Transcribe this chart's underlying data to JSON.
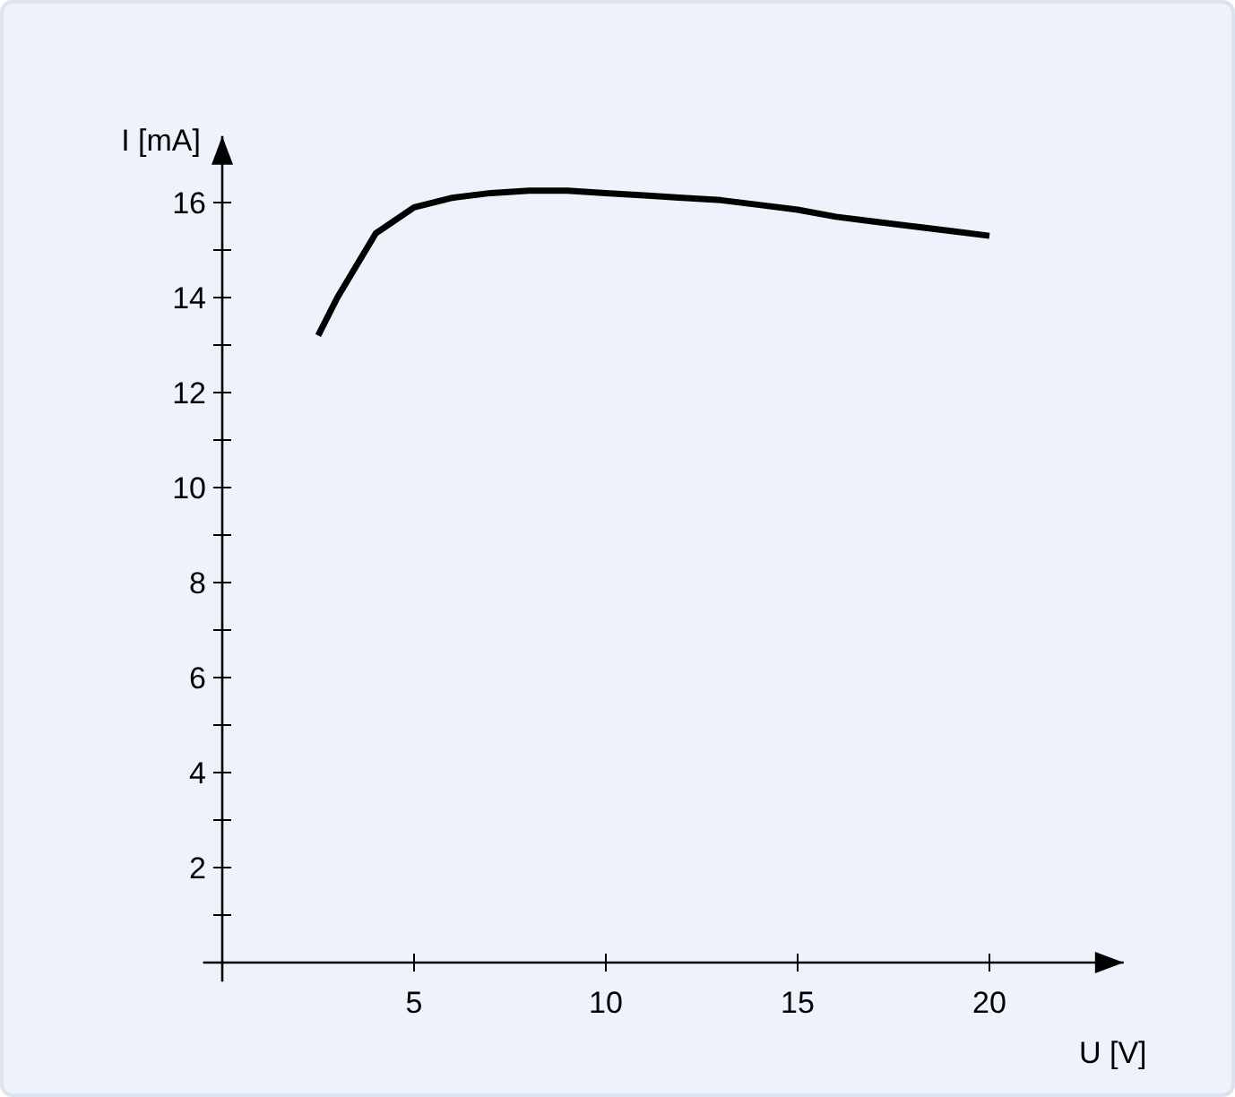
{
  "chart_data": {
    "type": "line",
    "xlabel": "U [V]",
    "ylabel": "I [mA]",
    "x": [
      2.5,
      3,
      4,
      5,
      6,
      7,
      8,
      9,
      10,
      11,
      12,
      13,
      14,
      15,
      16,
      17,
      18,
      19,
      20
    ],
    "series": [
      {
        "color": "#000000",
        "values": [
          13.2,
          14.0,
          15.35,
          15.9,
          16.1,
          16.2,
          16.25,
          16.25,
          16.2,
          16.15,
          16.1,
          16.05,
          15.95,
          15.85,
          15.7,
          15.6,
          15.5,
          15.4,
          15.3
        ]
      }
    ],
    "xlim": [
      -0.5,
      23.5
    ],
    "ylim": [
      -0.4,
      17.4
    ],
    "xticks": [
      5,
      10,
      15,
      20
    ],
    "yticks": [
      {
        "value": 1,
        "label": null
      },
      2,
      {
        "value": 3,
        "label": null
      },
      4,
      {
        "value": 5,
        "label": null
      },
      6,
      {
        "value": 7,
        "label": null
      },
      8,
      {
        "value": 9,
        "label": null
      },
      10,
      {
        "value": 11,
        "label": null
      },
      12,
      {
        "value": 13,
        "label": null
      },
      14,
      {
        "value": 15,
        "label": null
      },
      16
    ],
    "grid": false,
    "marker": "none",
    "line_style": "solid"
  }
}
